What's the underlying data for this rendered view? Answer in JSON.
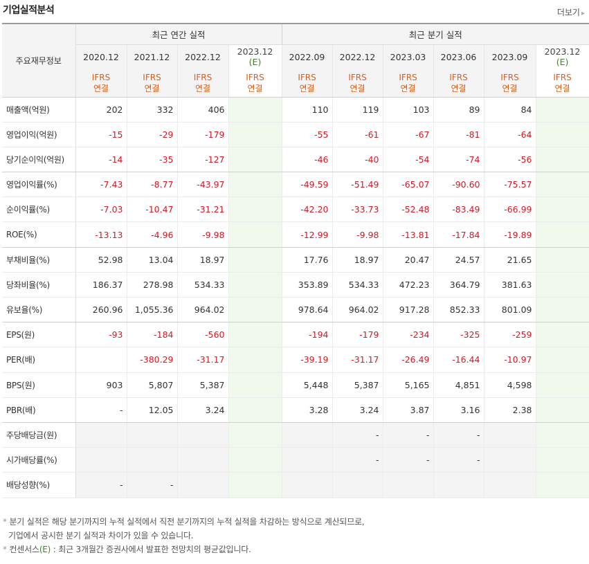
{
  "title": "기업실적분석",
  "more": {
    "label": "더보기",
    "arrow": "▸"
  },
  "table": {
    "row_header_label": "주요재무정보",
    "annual_group": "최근 연간 실적",
    "quarter_group": "최근 분기 실적",
    "ifrs_line1": "IFRS",
    "ifrs_line2": "연결",
    "columns": [
      {
        "date": "2020.12",
        "est": false
      },
      {
        "date": "2021.12",
        "est": false
      },
      {
        "date": "2022.12",
        "est": false
      },
      {
        "date": "2023.12",
        "est": true,
        "est_mark": "(E)"
      },
      {
        "date": "2022.09",
        "est": false
      },
      {
        "date": "2022.12",
        "est": false
      },
      {
        "date": "2023.03",
        "est": false
      },
      {
        "date": "2023.06",
        "est": false
      },
      {
        "date": "2023.09",
        "est": false
      },
      {
        "date": "2023.12",
        "est": true,
        "est_mark": "(E)"
      }
    ],
    "rows": [
      {
        "label": "매출액(억원)",
        "values": [
          "202",
          "332",
          "406",
          "",
          "110",
          "119",
          "103",
          "89",
          "84",
          ""
        ]
      },
      {
        "label": "영업이익(억원)",
        "values": [
          "-15",
          "-29",
          "-179",
          "",
          "-55",
          "-61",
          "-67",
          "-81",
          "-64",
          ""
        ]
      },
      {
        "label": "당기순이익(억원)",
        "values": [
          "-14",
          "-35",
          "-127",
          "",
          "-46",
          "-40",
          "-54",
          "-74",
          "-56",
          ""
        ],
        "group_end": true
      },
      {
        "label": "영업이익률(%)",
        "values": [
          "-7.43",
          "-8.77",
          "-43.97",
          "",
          "-49.59",
          "-51.49",
          "-65.07",
          "-90.60",
          "-75.57",
          ""
        ]
      },
      {
        "label": "순이익률(%)",
        "values": [
          "-7.03",
          "-10.47",
          "-31.21",
          "",
          "-42.20",
          "-33.73",
          "-52.48",
          "-83.49",
          "-66.99",
          ""
        ]
      },
      {
        "label": "ROE(%)",
        "values": [
          "-13.13",
          "-4.96",
          "-9.98",
          "",
          "-12.99",
          "-9.98",
          "-13.81",
          "-17.84",
          "-19.89",
          ""
        ],
        "group_end": true
      },
      {
        "label": "부채비율(%)",
        "values": [
          "52.98",
          "13.04",
          "18.97",
          "",
          "17.76",
          "18.97",
          "20.47",
          "24.57",
          "21.65",
          ""
        ]
      },
      {
        "label": "당좌비율(%)",
        "values": [
          "186.37",
          "278.98",
          "534.33",
          "",
          "353.89",
          "534.33",
          "472.23",
          "364.79",
          "381.63",
          ""
        ]
      },
      {
        "label": "유보율(%)",
        "values": [
          "260.96",
          "1,055.36",
          "964.02",
          "",
          "978.64",
          "964.02",
          "917.28",
          "852.33",
          "801.09",
          ""
        ],
        "group_end": true
      },
      {
        "label": "EPS(원)",
        "values": [
          "-93",
          "-184",
          "-560",
          "",
          "-194",
          "-179",
          "-234",
          "-325",
          "-259",
          ""
        ]
      },
      {
        "label": "PER(배)",
        "values": [
          "",
          "-380.29",
          "-31.17",
          "",
          "-39.19",
          "-31.17",
          "-26.49",
          "-16.44",
          "-10.97",
          ""
        ]
      },
      {
        "label": "BPS(원)",
        "values": [
          "903",
          "5,807",
          "5,387",
          "",
          "5,448",
          "5,387",
          "5,165",
          "4,851",
          "4,598",
          ""
        ]
      },
      {
        "label": "PBR(배)",
        "values": [
          "-",
          "12.05",
          "3.24",
          "",
          "3.28",
          "3.24",
          "3.87",
          "3.16",
          "2.38",
          ""
        ],
        "group_end": true
      },
      {
        "label": "주당배당금(원)",
        "values": [
          "",
          "",
          "",
          "",
          "",
          "-",
          "-",
          "-",
          "",
          ""
        ],
        "gray": true
      },
      {
        "label": "시가배당률(%)",
        "values": [
          "",
          "",
          "",
          "",
          "",
          "-",
          "-",
          "-",
          "",
          ""
        ],
        "gray": true
      },
      {
        "label": "배당성향(%)",
        "values": [
          "-",
          "-",
          "",
          "",
          "",
          "",
          "",
          "",
          "",
          ""
        ],
        "gray": true
      }
    ]
  },
  "notes": {
    "bullet": "*",
    "line1": "분기 실적은 해당 분기까지의 누적 실적에서 직전 분기까지의 누적 실적을 차감하는 방식으로 계산되므로,",
    "line2": "기업에서 공시한 분기 실적과 차이가 있을 수 있습니다.",
    "line3_pre": "컨센서스",
    "line3_e": "(E)",
    "line3_post": " : 최근 3개월간 증권사에서 발표한 전망치의 평균값입니다."
  }
}
